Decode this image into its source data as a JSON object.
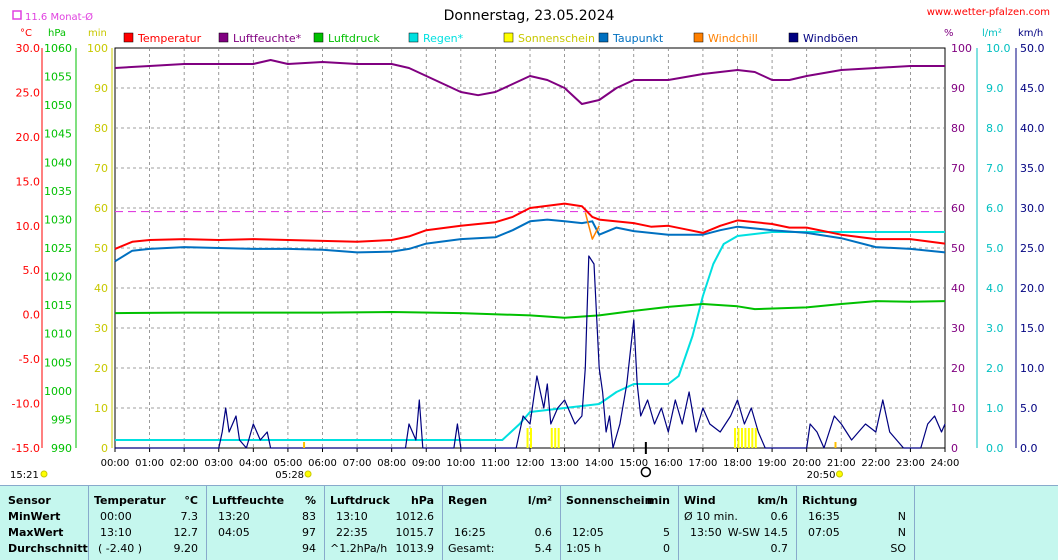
{
  "title": "Donnerstag, 23.05.2024",
  "site": "www.wetter-pfalzen.com",
  "monthly_avg_label": "11.6 Monat-Ø",
  "units": {
    "temp": "°C",
    "hpa": "hPa",
    "min": "min",
    "pct": "%",
    "rain": "l/m²",
    "kmh": "km/h"
  },
  "colors": {
    "temp": "#ff0000",
    "humidity": "#800080",
    "pressure": "#00c000",
    "rain": "#00e0e0",
    "sun": "#ffff00",
    "dew": "#0070c0",
    "windchill": "#ff8000",
    "gust": "#000080",
    "avg_line": "#e040e0",
    "grid": "#808080"
  },
  "legend": [
    {
      "label": "Temperatur",
      "color": "#ff0000"
    },
    {
      "label": "Luftfeuchte*",
      "color": "#800080"
    },
    {
      "label": "Luftdruck",
      "color": "#00c000"
    },
    {
      "label": "Regen*",
      "color": "#00e0e0"
    },
    {
      "label": "Sonnenschein",
      "color": "#ffff00"
    },
    {
      "label": "Taupunkt",
      "color": "#0070c0"
    },
    {
      "label": "Windchill",
      "color": "#ff8000"
    },
    {
      "label": "Windböen",
      "color": "#000080"
    }
  ],
  "markers": {
    "sunrise": "05:28",
    "sunset": "20:50",
    "now": "15:21"
  },
  "chart_data": {
    "type": "line",
    "x_ticks": [
      "00:00",
      "01:00",
      "02:00",
      "03:00",
      "04:00",
      "05:00",
      "06:00",
      "07:00",
      "08:00",
      "09:00",
      "10:00",
      "11:00",
      "12:00",
      "13:00",
      "14:00",
      "15:00",
      "16:00",
      "17:00",
      "18:00",
      "19:00",
      "20:00",
      "21:00",
      "22:00",
      "23:00",
      "24:00"
    ],
    "axes": {
      "temp": {
        "range": [
          -15,
          30
        ],
        "ticks": [
          "30.0",
          "25.0",
          "20.0",
          "15.0",
          "10.0",
          "5.0",
          "0.0",
          "-5.0",
          "-10.0",
          "-15.0"
        ]
      },
      "pressure": {
        "range": [
          990,
          1060
        ],
        "ticks": [
          "1060",
          "1055",
          "1050",
          "1045",
          "1040",
          "1035",
          "1030",
          "1025",
          "1020",
          "1015",
          "1010",
          "1005",
          "1000",
          "995",
          "990"
        ]
      },
      "sun_min": {
        "range": [
          0,
          100
        ],
        "ticks": [
          "100",
          "90",
          "80",
          "70",
          "60",
          "50",
          "40",
          "30",
          "20",
          "10",
          "0"
        ]
      },
      "humidity": {
        "range": [
          0,
          100
        ],
        "ticks": [
          "100",
          "90",
          "80",
          "70",
          "60",
          "50",
          "40",
          "30",
          "20",
          "10",
          "0"
        ]
      },
      "rain": {
        "range": [
          0,
          10
        ],
        "ticks": [
          "10.0",
          "9.0",
          "8.0",
          "7.0",
          "6.0",
          "5.0",
          "4.0",
          "3.0",
          "2.0",
          "1.0",
          "0.0"
        ]
      },
      "wind": {
        "range": [
          0,
          50
        ],
        "ticks": [
          "50.0",
          "45.0",
          "40.0",
          "35.0",
          "30.0",
          "25.0",
          "20.0",
          "15.0",
          "10.0",
          "5.0",
          "0.0"
        ]
      }
    },
    "monthly_avg_temp": 11.6,
    "series": [
      {
        "name": "Temperatur",
        "axis": "temp",
        "color": "#ff0000",
        "points": [
          [
            0,
            7.4
          ],
          [
            0.5,
            8.2
          ],
          [
            1,
            8.4
          ],
          [
            2,
            8.5
          ],
          [
            3,
            8.4
          ],
          [
            4,
            8.5
          ],
          [
            5,
            8.4
          ],
          [
            6,
            8.3
          ],
          [
            7,
            8.2
          ],
          [
            8,
            8.4
          ],
          [
            8.5,
            8.8
          ],
          [
            9,
            9.5
          ],
          [
            10,
            10.0
          ],
          [
            11,
            10.4
          ],
          [
            11.5,
            11.0
          ],
          [
            12,
            12.0
          ],
          [
            13,
            12.5
          ],
          [
            13.5,
            12.2
          ],
          [
            13.8,
            11.0
          ],
          [
            14,
            10.7
          ],
          [
            15,
            10.3
          ],
          [
            15.5,
            9.9
          ],
          [
            16,
            10.0
          ],
          [
            16.5,
            9.6
          ],
          [
            17,
            9.2
          ],
          [
            17.5,
            10.0
          ],
          [
            18,
            10.6
          ],
          [
            19,
            10.2
          ],
          [
            19.5,
            9.8
          ],
          [
            20,
            9.8
          ],
          [
            21,
            9.0
          ],
          [
            22,
            8.5
          ],
          [
            23,
            8.5
          ],
          [
            24,
            8.0
          ]
        ]
      },
      {
        "name": "Taupunkt",
        "axis": "temp",
        "color": "#0070c0",
        "points": [
          [
            0,
            6.0
          ],
          [
            0.5,
            7.2
          ],
          [
            1,
            7.4
          ],
          [
            2,
            7.6
          ],
          [
            3,
            7.5
          ],
          [
            4,
            7.4
          ],
          [
            5,
            7.4
          ],
          [
            6,
            7.3
          ],
          [
            7,
            7.0
          ],
          [
            8,
            7.1
          ],
          [
            8.5,
            7.4
          ],
          [
            9,
            8.0
          ],
          [
            10,
            8.5
          ],
          [
            11,
            8.7
          ],
          [
            11.5,
            9.5
          ],
          [
            12,
            10.5
          ],
          [
            12.5,
            10.7
          ],
          [
            13,
            10.5
          ],
          [
            13.5,
            10.3
          ],
          [
            13.8,
            10.5
          ],
          [
            14,
            9.0
          ],
          [
            14.5,
            9.8
          ],
          [
            15,
            9.4
          ],
          [
            16,
            9.0
          ],
          [
            17,
            9.0
          ],
          [
            17.5,
            9.5
          ],
          [
            18,
            9.9
          ],
          [
            19,
            9.5
          ],
          [
            20,
            9.2
          ],
          [
            21,
            8.6
          ],
          [
            22,
            7.6
          ],
          [
            23,
            7.4
          ],
          [
            24,
            7.0
          ]
        ]
      },
      {
        "name": "Windchill",
        "axis": "temp",
        "color": "#ff8000",
        "points": [
          [
            13.6,
            11.5
          ],
          [
            13.8,
            8.5
          ],
          [
            14,
            10.0
          ]
        ]
      },
      {
        "name": "Luftfeuchte*",
        "axis": "humidity",
        "color": "#800080",
        "points": [
          [
            0,
            95
          ],
          [
            1,
            95.5
          ],
          [
            2,
            96
          ],
          [
            3,
            96
          ],
          [
            4,
            96
          ],
          [
            4.5,
            97
          ],
          [
            5,
            96
          ],
          [
            6,
            96.5
          ],
          [
            7,
            96
          ],
          [
            8,
            96
          ],
          [
            8.5,
            95
          ],
          [
            9,
            93
          ],
          [
            10,
            89
          ],
          [
            10.5,
            88.2
          ],
          [
            11,
            89
          ],
          [
            11.5,
            91
          ],
          [
            12,
            93
          ],
          [
            12.5,
            92
          ],
          [
            13,
            90
          ],
          [
            13.5,
            86
          ],
          [
            14,
            87
          ],
          [
            14.5,
            90
          ],
          [
            15,
            92
          ],
          [
            16,
            92
          ],
          [
            17,
            93.5
          ],
          [
            18,
            94.5
          ],
          [
            18.5,
            94
          ],
          [
            19,
            92
          ],
          [
            19.5,
            92
          ],
          [
            20,
            93
          ],
          [
            21,
            94.5
          ],
          [
            22,
            95
          ],
          [
            23,
            95.5
          ],
          [
            24,
            95.5
          ]
        ]
      },
      {
        "name": "Luftdruck",
        "axis": "pressure",
        "color": "#00c000",
        "points": [
          [
            0,
            1013.6
          ],
          [
            2,
            1013.7
          ],
          [
            4,
            1013.7
          ],
          [
            6,
            1013.7
          ],
          [
            8,
            1013.8
          ],
          [
            10,
            1013.6
          ],
          [
            12,
            1013.2
          ],
          [
            13,
            1012.8
          ],
          [
            14,
            1013.2
          ],
          [
            15,
            1014.0
          ],
          [
            16,
            1014.7
          ],
          [
            17,
            1015.2
          ],
          [
            18,
            1014.8
          ],
          [
            18.5,
            1014.3
          ],
          [
            20,
            1014.6
          ],
          [
            21,
            1015.2
          ],
          [
            22,
            1015.7
          ],
          [
            23,
            1015.6
          ],
          [
            24,
            1015.7
          ]
        ]
      },
      {
        "name": "Regen*",
        "axis": "rain",
        "color": "#00e0e0",
        "points": [
          [
            0,
            0.2
          ],
          [
            11.2,
            0.2
          ],
          [
            11.7,
            0.6
          ],
          [
            12,
            0.9
          ],
          [
            13,
            1.0
          ],
          [
            14,
            1.1
          ],
          [
            14.5,
            1.4
          ],
          [
            15,
            1.6
          ],
          [
            15.5,
            1.6
          ],
          [
            16,
            1.6
          ],
          [
            16.3,
            1.8
          ],
          [
            16.7,
            2.8
          ],
          [
            17,
            3.8
          ],
          [
            17.3,
            4.6
          ],
          [
            17.6,
            5.1
          ],
          [
            18,
            5.3
          ],
          [
            19,
            5.4
          ],
          [
            24,
            5.4
          ]
        ]
      },
      {
        "name": "Windböen",
        "axis": "wind",
        "color": "#000080",
        "points": [
          [
            0,
            0
          ],
          [
            3,
            0
          ],
          [
            3.1,
            2
          ],
          [
            3.2,
            5
          ],
          [
            3.3,
            2
          ],
          [
            3.5,
            4
          ],
          [
            3.6,
            1
          ],
          [
            3.8,
            0
          ],
          [
            4,
            3
          ],
          [
            4.2,
            1
          ],
          [
            4.4,
            2
          ],
          [
            4.5,
            0
          ],
          [
            8.4,
            0
          ],
          [
            8.5,
            3
          ],
          [
            8.7,
            1
          ],
          [
            8.8,
            6
          ],
          [
            8.9,
            0
          ],
          [
            9.8,
            0
          ],
          [
            9.9,
            3
          ],
          [
            10,
            0
          ],
          [
            11.6,
            0
          ],
          [
            11.8,
            4
          ],
          [
            12,
            3
          ],
          [
            12.2,
            9
          ],
          [
            12.4,
            5
          ],
          [
            12.5,
            8
          ],
          [
            12.6,
            3
          ],
          [
            12.8,
            5
          ],
          [
            13,
            6
          ],
          [
            13.3,
            3
          ],
          [
            13.5,
            4
          ],
          [
            13.6,
            10
          ],
          [
            13.7,
            24
          ],
          [
            13.85,
            23
          ],
          [
            14,
            10
          ],
          [
            14.1,
            7
          ],
          [
            14.2,
            2
          ],
          [
            14.3,
            4
          ],
          [
            14.4,
            0
          ],
          [
            14.6,
            3
          ],
          [
            14.8,
            8
          ],
          [
            15,
            16
          ],
          [
            15.1,
            8
          ],
          [
            15.2,
            4
          ],
          [
            15.4,
            6
          ],
          [
            15.6,
            3
          ],
          [
            15.8,
            5
          ],
          [
            16,
            2
          ],
          [
            16.2,
            6
          ],
          [
            16.4,
            3
          ],
          [
            16.6,
            7
          ],
          [
            16.8,
            2
          ],
          [
            17,
            5
          ],
          [
            17.2,
            3
          ],
          [
            17.5,
            2
          ],
          [
            17.8,
            4
          ],
          [
            18,
            6
          ],
          [
            18.2,
            3
          ],
          [
            18.4,
            5
          ],
          [
            18.6,
            2
          ],
          [
            18.8,
            0
          ],
          [
            20,
            0
          ],
          [
            20.1,
            3
          ],
          [
            20.3,
            2
          ],
          [
            20.5,
            0
          ],
          [
            20.8,
            4
          ],
          [
            21,
            3
          ],
          [
            21.3,
            1
          ],
          [
            21.5,
            2
          ],
          [
            21.7,
            3
          ],
          [
            22,
            2
          ],
          [
            22.2,
            6
          ],
          [
            22.4,
            2
          ],
          [
            22.6,
            1
          ],
          [
            22.8,
            0
          ],
          [
            23.3,
            0
          ],
          [
            23.5,
            3
          ],
          [
            23.7,
            4
          ],
          [
            23.9,
            2
          ],
          [
            24,
            3
          ]
        ]
      }
    ],
    "sunshine_bars": [
      [
        11.9,
        5
      ],
      [
        12.0,
        5
      ],
      [
        12.6,
        5
      ],
      [
        12.7,
        5
      ],
      [
        12.8,
        5
      ],
      [
        17.9,
        5
      ],
      [
        18.0,
        5
      ],
      [
        18.1,
        5
      ],
      [
        18.2,
        5
      ],
      [
        18.3,
        5
      ],
      [
        18.4,
        5
      ],
      [
        18.5,
        5
      ]
    ]
  },
  "stats": {
    "headers": {
      "sensor": "Sensor",
      "temp": "Temperatur",
      "temp_u": "°C",
      "hum": "Luftfeuchte",
      "hum_u": "%",
      "press": "Luftdruck",
      "press_u": "hPa",
      "rain": "Regen",
      "rain_u": "l/m²",
      "sun": "Sonnenschein",
      "sun_u": "min",
      "wind": "Wind",
      "wind_u": "km/h",
      "dir": "Richtung"
    },
    "rows": [
      {
        "label": "MinWert",
        "temp_t": "00:00",
        "temp_v": "7.3",
        "hum_t": "13:20",
        "hum_v": "83",
        "press_t": "13:10",
        "press_v": "1012.6",
        "rain_t": "",
        "rain_v": "",
        "sun_t": "",
        "sun_v": "",
        "wind_t": "Ø 10 min.",
        "wind_v": "0.6",
        "dir_t": "16:35",
        "dir_v": "N"
      },
      {
        "label": "MaxWert",
        "temp_t": "13:10",
        "temp_v": "12.7",
        "hum_t": "04:05",
        "hum_v": "97",
        "press_t": "22:35",
        "press_v": "1015.7",
        "rain_t": "16:25",
        "rain_v": "0.6",
        "sun_t": "12:05",
        "sun_v": "5",
        "wind_t": "13:50",
        "wind_v": "W-SW 14.5",
        "dir_t": "07:05",
        "dir_v": "N"
      },
      {
        "label": "Durchschnitt",
        "temp_t": "( -2.40 )",
        "temp_v": "9.20",
        "hum_t": "",
        "hum_v": "94",
        "press_t": "^1.2hPa/h",
        "press_v": "1013.9",
        "rain_t": "Gesamt:",
        "rain_v": "5.4",
        "sun_t": "1:05 h",
        "sun_v": "0",
        "wind_t": "",
        "wind_v": "0.7",
        "dir_t": "",
        "dir_v": "SO"
      }
    ]
  }
}
